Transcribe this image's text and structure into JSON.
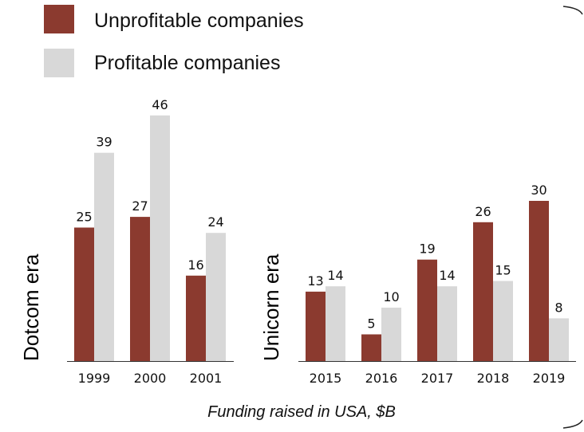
{
  "legend": [
    {
      "label": "Unprofitable companies",
      "color": "#8B3A2F"
    },
    {
      "label": "Profitable companies",
      "color": "#D8D8D8"
    }
  ],
  "footer_label": "Funding raised in USA, $B",
  "colors": {
    "unprofitable": "#8B3A2F",
    "profitable": "#D8D8D8",
    "axis": "#333333"
  },
  "chart_data": [
    {
      "type": "bar",
      "era_label": "Dotcom era",
      "categories": [
        "1999",
        "2000",
        "2001"
      ],
      "series": [
        {
          "name": "Unprofitable companies",
          "values": [
            25,
            27,
            16
          ]
        },
        {
          "name": "Profitable companies",
          "values": [
            39,
            46,
            24
          ]
        }
      ],
      "ylim": [
        0,
        50
      ]
    },
    {
      "type": "bar",
      "era_label": "Unicorn era",
      "categories": [
        "2015",
        "2016",
        "2017",
        "2018",
        "2019"
      ],
      "series": [
        {
          "name": "Unprofitable companies",
          "values": [
            13,
            5,
            19,
            26,
            30
          ]
        },
        {
          "name": "Profitable companies",
          "values": [
            14,
            10,
            14,
            15,
            8
          ]
        }
      ],
      "ylim": [
        0,
        50
      ]
    }
  ]
}
